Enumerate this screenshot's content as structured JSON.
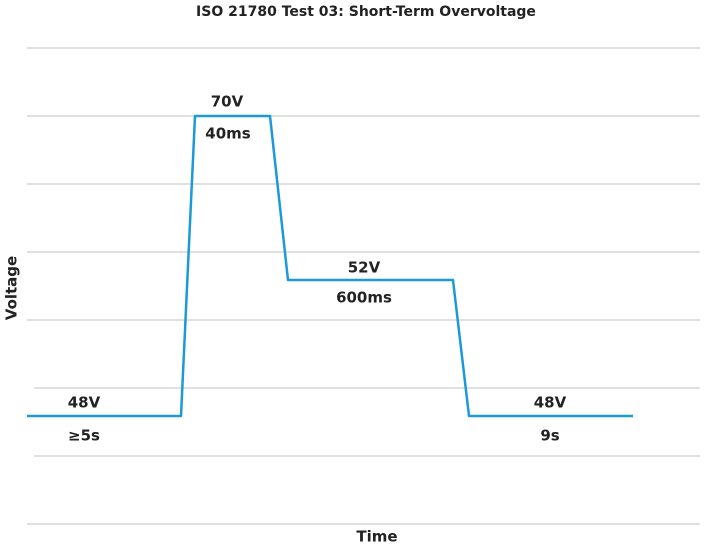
{
  "title": "ISO 21780 Test 03: Short-Term Overvoltage",
  "y_axis_label": "Voltage",
  "x_axis_label": "Time",
  "segments": [
    {
      "level": "48V",
      "duration": "≥5s"
    },
    {
      "level": "70V",
      "duration": "40ms"
    },
    {
      "level": "52V",
      "duration": "600ms"
    },
    {
      "level": "48V",
      "duration": "9s"
    }
  ]
}
